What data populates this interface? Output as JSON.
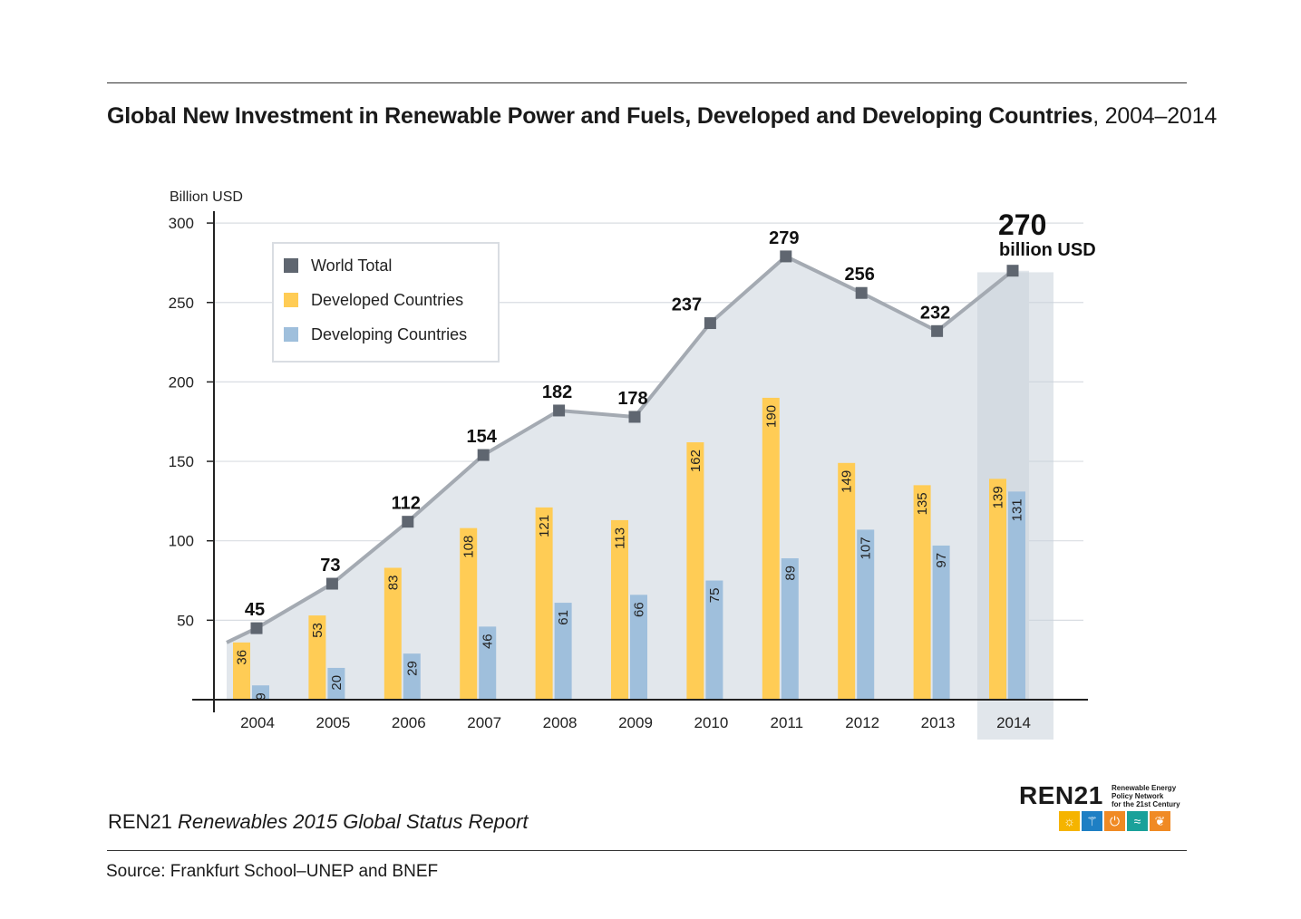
{
  "title": {
    "bold": "Global New Investment in Renewable Power and Fuels, Developed and Developing Countries",
    "rest": ", 2004–2014"
  },
  "footer": {
    "org": "REN21",
    "report": "Renewables 2015 Global Status Report",
    "source": "Source: Frankfurt School–UNEP and BNEF"
  },
  "logo": {
    "name": "REN21",
    "tagline_1": "Renewable Energy",
    "tagline_2": "Policy Network",
    "tagline_3": "for the 21st Century",
    "icons": [
      "sun-icon",
      "wind-turbine-icon",
      "power-icon",
      "waves-icon",
      "leaf-icon"
    ],
    "icon_colors": [
      "#f5b400",
      "#1e7fc4",
      "#f08a24",
      "#1aa19a",
      "#f08a24"
    ]
  },
  "chart_data": {
    "type": "bar",
    "title": "Global New Investment in Renewable Power and Fuels, Developed and Developing Countries, 2004–2014",
    "ylabel": "Billion USD",
    "xlabel": "",
    "ylim": [
      0,
      300
    ],
    "yticks": [
      50,
      100,
      150,
      200,
      250,
      300
    ],
    "categories": [
      "2004",
      "2005",
      "2006",
      "2007",
      "2008",
      "2009",
      "2010",
      "2011",
      "2012",
      "2013",
      "2014"
    ],
    "series": [
      {
        "name": "World Total",
        "kind": "line",
        "color": "#5f6670",
        "values": [
          45,
          73,
          112,
          154,
          182,
          178,
          237,
          279,
          256,
          232,
          270
        ]
      },
      {
        "name": "Developed Countries",
        "kind": "bar",
        "color": "#ffcc55",
        "values": [
          36,
          53,
          83,
          108,
          121,
          113,
          162,
          190,
          149,
          135,
          139
        ]
      },
      {
        "name": "Developing Countries",
        "kind": "bar",
        "color": "#9fbfdc",
        "values": [
          9,
          20,
          29,
          46,
          61,
          66,
          75,
          89,
          107,
          97,
          131
        ]
      }
    ],
    "legend": [
      "World Total",
      "Developed Countries",
      "Developing Countries"
    ],
    "legend_position": "top-left",
    "highlight": {
      "category": "2014",
      "value_label": "270",
      "unit_label": "billion USD"
    },
    "grid": true
  }
}
